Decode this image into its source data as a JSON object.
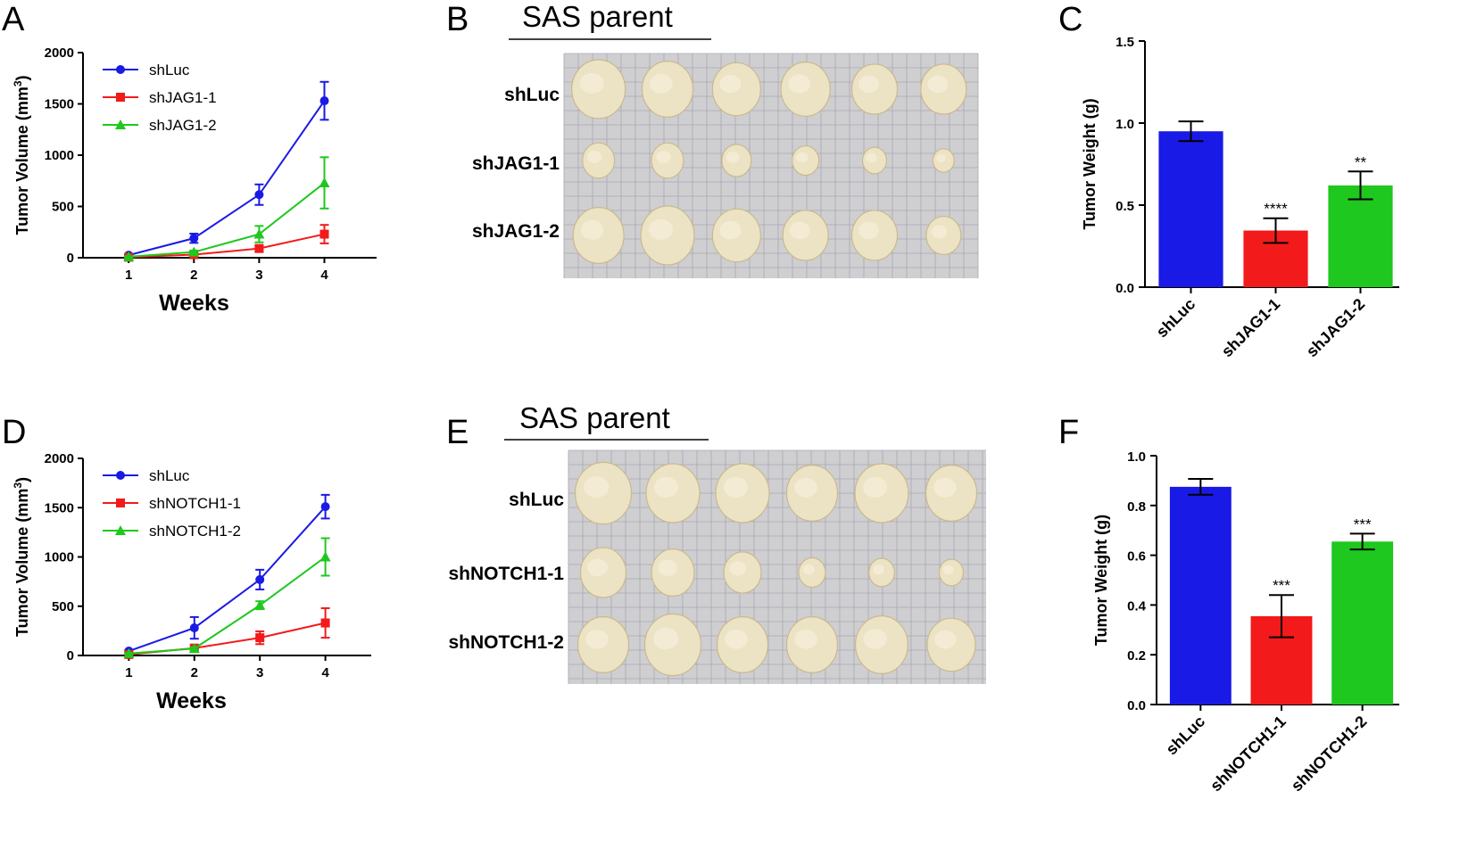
{
  "panels": {
    "A": "A",
    "B": "B",
    "C": "C",
    "D": "D",
    "E": "E",
    "F": "F"
  },
  "colors": {
    "blue": "#1a1ae6",
    "red": "#f21a1a",
    "green": "#1ec81e",
    "photo_bg": "#cfcfd2",
    "tumor": "#ece2c4"
  },
  "chart_data": [
    {
      "id": "A",
      "type": "line",
      "title": "",
      "xlabel": "Weeks",
      "ylabel": "Tumor Volume (mm³)",
      "ylabel_main": "Tumor Volume (mm",
      "ylabel_sup": "3",
      "ylabel_end": ")",
      "x": [
        1,
        2,
        3,
        4
      ],
      "xlim": [
        0.3,
        4.8
      ],
      "ylim": [
        0,
        2000
      ],
      "yticks": [
        0,
        500,
        1000,
        1500,
        2000
      ],
      "legend_position": "top-left",
      "series": [
        {
          "name": "shLuc",
          "color": "#1a1ae6",
          "marker": "circle",
          "values": [
            25,
            190,
            615,
            1530
          ],
          "err": [
            10,
            45,
            100,
            185
          ]
        },
        {
          "name": "shJAG1-1",
          "color": "#f21a1a",
          "marker": "square",
          "values": [
            5,
            30,
            90,
            230
          ],
          "err": [
            3,
            8,
            30,
            90
          ]
        },
        {
          "name": "shJAG1-2",
          "color": "#1ec81e",
          "marker": "triangle",
          "values": [
            10,
            55,
            230,
            730
          ],
          "err": [
            5,
            15,
            80,
            250
          ]
        }
      ]
    },
    {
      "id": "C",
      "type": "bar",
      "title": "",
      "xlabel": "",
      "ylabel": "Tumor Weight (g)",
      "categories": [
        "shLuc",
        "shJAG1-1",
        "shJAG1-2"
      ],
      "values": [
        0.95,
        0.345,
        0.62
      ],
      "err": [
        0.06,
        0.075,
        0.085
      ],
      "significance": [
        "",
        "****",
        "**"
      ],
      "ylim": [
        0,
        1.5
      ],
      "yticks": [
        "0.0",
        "0.5",
        "1.0",
        "1.5"
      ],
      "bar_colors": [
        "#1a1ae6",
        "#f21a1a",
        "#1ec81e"
      ]
    },
    {
      "id": "D",
      "type": "line",
      "title": "",
      "xlabel": "Weeks",
      "ylabel": "Tumor Volume (mm³)",
      "ylabel_main": "Tumor Volume (mm",
      "ylabel_sup": "3",
      "ylabel_end": ")",
      "x": [
        1,
        2,
        3,
        4
      ],
      "xlim": [
        0.3,
        4.7
      ],
      "ylim": [
        0,
        2000
      ],
      "yticks": [
        0,
        500,
        1000,
        1500,
        2000
      ],
      "legend_position": "top-left",
      "series": [
        {
          "name": "shLuc",
          "color": "#1a1ae6",
          "marker": "circle",
          "values": [
            45,
            280,
            770,
            1510
          ],
          "err": [
            10,
            110,
            100,
            120
          ]
        },
        {
          "name": "shNOTCH1-1",
          "color": "#f21a1a",
          "marker": "square",
          "values": [
            10,
            75,
            180,
            330
          ],
          "err": [
            5,
            20,
            65,
            150
          ]
        },
        {
          "name": "shNOTCH1-2",
          "color": "#1ec81e",
          "marker": "triangle",
          "values": [
            20,
            70,
            510,
            1000
          ],
          "err": [
            5,
            15,
            40,
            190
          ]
        }
      ]
    },
    {
      "id": "F",
      "type": "bar",
      "title": "",
      "xlabel": "",
      "ylabel": "Tumor Weight (g)",
      "categories": [
        "shLuc",
        "shNOTCH1-1",
        "shNOTCH1-2"
      ],
      "values": [
        0.875,
        0.355,
        0.655
      ],
      "err": [
        0.032,
        0.085,
        0.032
      ],
      "significance": [
        "",
        "***",
        "***"
      ],
      "ylim": [
        0,
        1.0
      ],
      "yticks": [
        "0.0",
        "0.2",
        "0.4",
        "0.6",
        "0.8",
        "1.0"
      ],
      "bar_colors": [
        "#1a1ae6",
        "#f21a1a",
        "#1ec81e"
      ]
    }
  ],
  "photos": {
    "B": {
      "title": "SAS parent",
      "rows": [
        "shLuc",
        "shJAG1-1",
        "shJAG1-2"
      ],
      "tumor_sizes": [
        [
          1.0,
          0.95,
          0.9,
          0.92,
          0.85,
          0.85
        ],
        [
          0.6,
          0.6,
          0.55,
          0.5,
          0.45,
          0.4
        ],
        [
          0.95,
          1.0,
          0.9,
          0.85,
          0.85,
          0.65
        ]
      ]
    },
    "E": {
      "title": "SAS parent",
      "rows": [
        "shLuc",
        "shNOTCH1-1",
        "shNOTCH1-2"
      ],
      "tumor_sizes": [
        [
          1.05,
          1.0,
          1.0,
          0.95,
          1.0,
          0.95
        ],
        [
          0.85,
          0.8,
          0.7,
          0.5,
          0.48,
          0.45
        ],
        [
          0.95,
          1.05,
          0.95,
          0.95,
          0.98,
          0.9
        ]
      ]
    }
  }
}
